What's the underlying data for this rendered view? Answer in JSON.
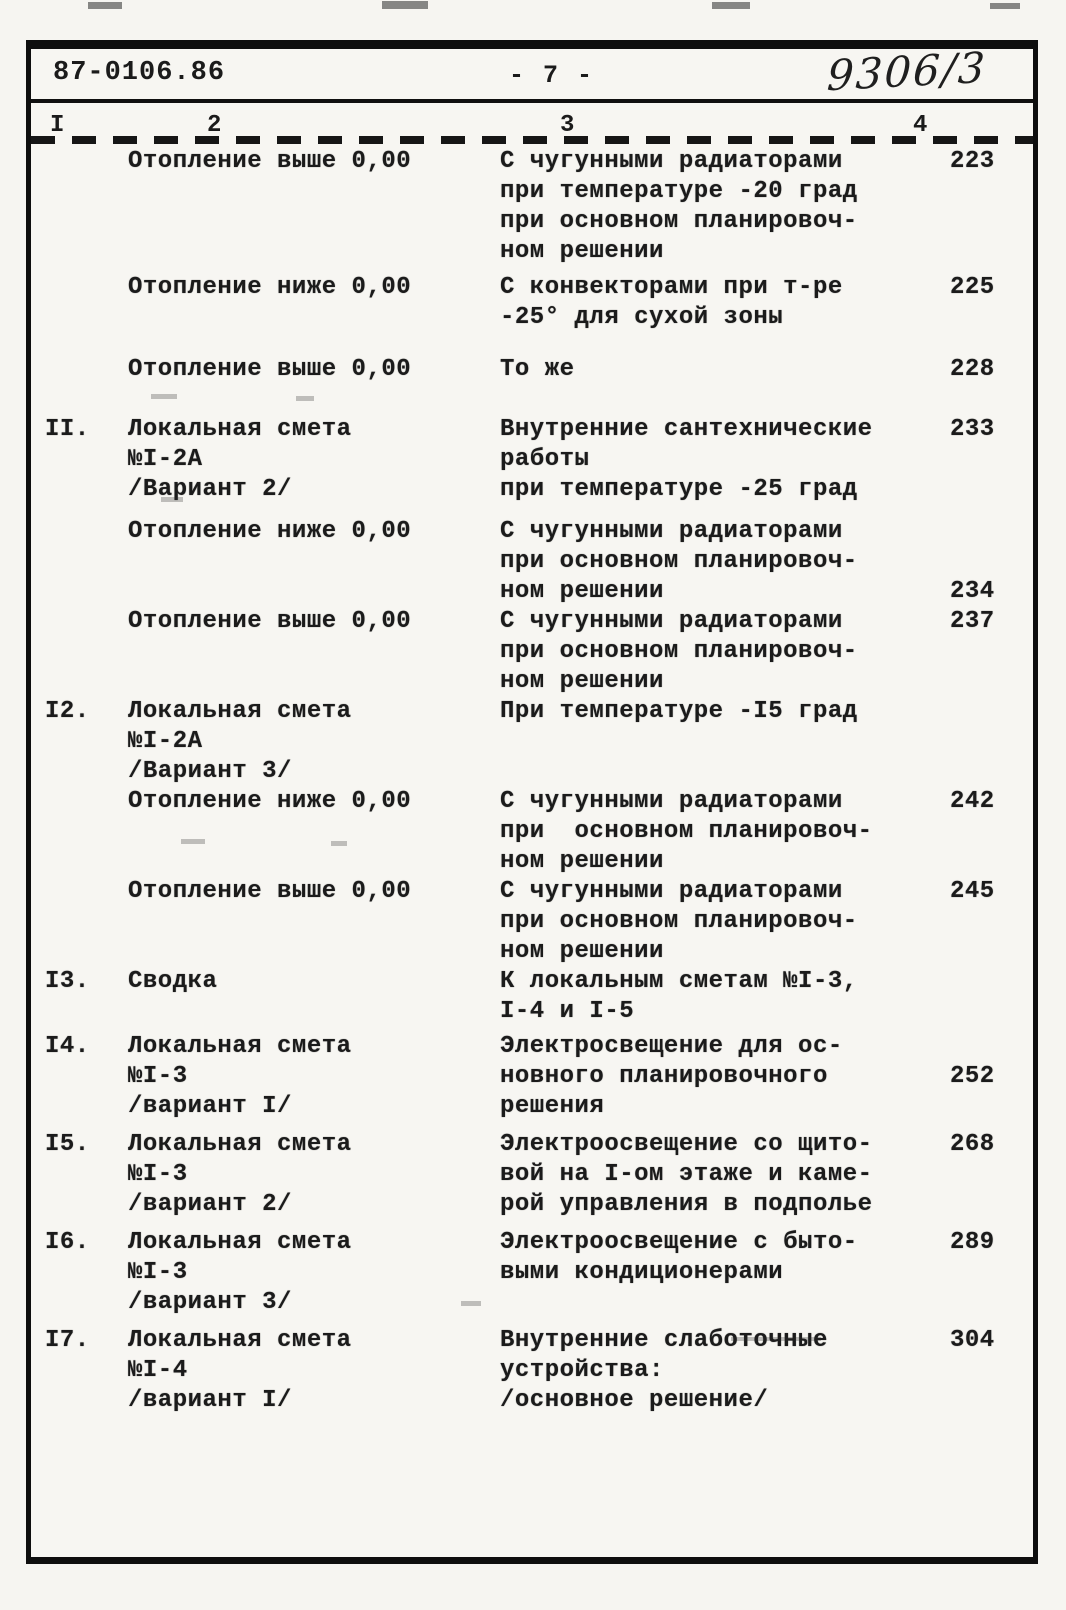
{
  "header": {
    "doc_number": "87-0106.86",
    "page_number": "- 7 -",
    "handwritten_number": "9306/3"
  },
  "column_ruler": {
    "col1": "I",
    "col2": "2",
    "col3": "3",
    "col4": "4"
  },
  "table": {
    "rows": [
      {
        "num": "",
        "col2": [
          "Отопление выше 0,00"
        ],
        "col3": [
          "С чугунными радиаторами",
          "при температуре -20 град",
          "при основном планировоч-",
          "ном решении"
        ],
        "page": "223",
        "page_line": 0
      },
      {
        "num": "",
        "col2": [
          "Отопление ниже 0,00"
        ],
        "col3": [
          "С конвекторами при т-ре",
          "-25° для сухой зоны"
        ],
        "page": "225",
        "page_line": 0
      },
      {
        "num": "",
        "col2": [
          "Отопление выше 0,00"
        ],
        "col3": [
          "То же"
        ],
        "page": "228",
        "page_line": 0
      },
      {
        "num": "II.",
        "col2": [
          "Локальная смета",
          "№I-2А",
          "/Вариант 2/"
        ],
        "col3": [
          "Внутренние сантехнические",
          "работы",
          "при температуре -25 град"
        ],
        "page": "233",
        "page_line": 0
      },
      {
        "num": "",
        "col2": [
          "Отопление ниже 0,00"
        ],
        "col3": [
          "С чугунными радиаторами",
          "при основном планировоч-",
          "ном решении"
        ],
        "page": "234",
        "page_line": 2
      },
      {
        "num": "",
        "col2": [
          "Отопление выше 0,00"
        ],
        "col3": [
          "С чугунными радиаторами",
          "при основном планировоч-",
          "ном решении"
        ],
        "page": "237",
        "page_line": 0
      },
      {
        "num": "I2.",
        "col2": [
          "Локальная смета",
          "№I-2А",
          "/Вариант 3/"
        ],
        "col3": [
          "При температуре -I5 град"
        ],
        "page": "",
        "page_line": 0
      },
      {
        "num": "",
        "col2": [
          "Отопление ниже 0,00"
        ],
        "col3": [
          "С чугунными радиаторами",
          "при  основном планировоч-",
          "ном решении"
        ],
        "page": "242",
        "page_line": 0
      },
      {
        "num": "",
        "col2": [
          "Отопление выше 0,00"
        ],
        "col3": [
          "С чугунными радиаторами",
          "при основном планировоч-",
          "ном решении"
        ],
        "page": "245",
        "page_line": 0
      },
      {
        "num": "I3.",
        "col2": [
          "Сводка"
        ],
        "col3": [
          "К локальным сметам №I-3,",
          "I-4 и I-5"
        ],
        "page": "",
        "page_line": 0
      },
      {
        "num": "I4.",
        "col2": [
          "Локальная смета",
          "№I-3",
          "/вариант I/"
        ],
        "col3": [
          "Электросвещение для ос-",
          "новного планировочного",
          "решения"
        ],
        "page": "252",
        "page_line": 1
      },
      {
        "num": "I5.",
        "col2": [
          "Локальная смета",
          "№I-3",
          "/вариант 2/"
        ],
        "col3": [
          "Электроосвещение со щито-",
          "вой на I-ом этаже и каме-",
          "рой управления в подполье"
        ],
        "page": "268",
        "page_line": 0
      },
      {
        "num": "I6.",
        "col2": [
          "Локальная смета",
          "№I-3",
          "/вариант 3/"
        ],
        "col3": [
          "Электроосвещение с быто-",
          "выми кондиционерами"
        ],
        "page": "289",
        "page_line": 0
      },
      {
        "num": "I7.",
        "col2": [
          "Локальная смета",
          "№I-4",
          "/вариант I/"
        ],
        "col3": [
          "Внутренние слаботочные",
          "устройства:",
          "/основное решение/"
        ],
        "page": "304",
        "page_line": 0
      }
    ]
  },
  "colors": {
    "paper": "#f6f5f1",
    "ink": "#1b1b1b",
    "border": "#0e0e0e"
  }
}
